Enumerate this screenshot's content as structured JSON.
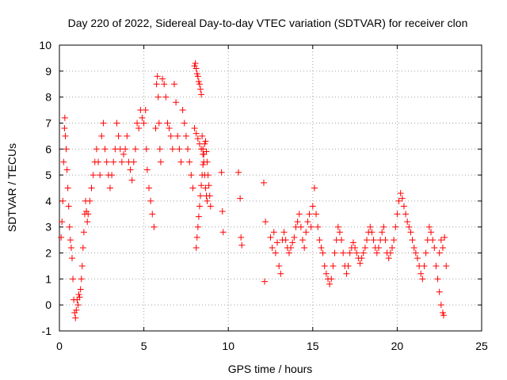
{
  "chart_data": {
    "type": "scatter",
    "title": "Day 220 of 2022, Sidereal Day-to-day VTEC variation (SDTVAR) for receiver clon",
    "xlabel": "GPS time / hours",
    "ylabel": "SDTVAR / TECUs",
    "xlim": [
      0,
      25
    ],
    "ylim": [
      -1,
      10
    ],
    "xticks": [
      0,
      5,
      10,
      15,
      20,
      25
    ],
    "yticks": [
      -1,
      0,
      1,
      2,
      3,
      4,
      5,
      6,
      7,
      8,
      9,
      10
    ],
    "grid": true,
    "marker": "+",
    "series": [
      {
        "name": "SDTVAR",
        "color": "#ff0000",
        "points": [
          [
            0.1,
            2.6
          ],
          [
            0.15,
            3.2
          ],
          [
            0.2,
            4.0
          ],
          [
            0.25,
            5.5
          ],
          [
            0.3,
            6.8
          ],
          [
            0.32,
            7.2
          ],
          [
            0.35,
            6.5
          ],
          [
            0.4,
            6.0
          ],
          [
            0.45,
            5.2
          ],
          [
            0.5,
            4.5
          ],
          [
            0.55,
            3.8
          ],
          [
            0.6,
            3.0
          ],
          [
            0.65,
            2.5
          ],
          [
            0.7,
            2.2
          ],
          [
            0.75,
            1.8
          ],
          [
            0.8,
            1.0
          ],
          [
            0.85,
            0.2
          ],
          [
            0.9,
            -0.3
          ],
          [
            0.95,
            -0.5
          ],
          [
            1.0,
            -0.2
          ],
          [
            1.05,
            0.2
          ],
          [
            1.1,
            0.0
          ],
          [
            1.15,
            0.4
          ],
          [
            1.2,
            0.3
          ],
          [
            1.25,
            0.6
          ],
          [
            1.3,
            1.0
          ],
          [
            1.35,
            1.5
          ],
          [
            1.4,
            2.2
          ],
          [
            1.45,
            2.8
          ],
          [
            1.5,
            3.5
          ],
          [
            1.55,
            4.0
          ],
          [
            1.6,
            3.6
          ],
          [
            1.65,
            3.2
          ],
          [
            1.7,
            3.5
          ],
          [
            1.8,
            4.0
          ],
          [
            1.9,
            4.5
          ],
          [
            2.0,
            5.0
          ],
          [
            2.1,
            5.5
          ],
          [
            2.2,
            6.0
          ],
          [
            2.3,
            5.5
          ],
          [
            2.4,
            5.0
          ],
          [
            2.5,
            6.5
          ],
          [
            2.6,
            7.0
          ],
          [
            2.7,
            6.0
          ],
          [
            2.8,
            5.5
          ],
          [
            2.9,
            5.0
          ],
          [
            3.0,
            4.5
          ],
          [
            3.1,
            5.0
          ],
          [
            3.2,
            5.5
          ],
          [
            3.3,
            6.0
          ],
          [
            3.4,
            7.0
          ],
          [
            3.5,
            6.5
          ],
          [
            3.6,
            6.0
          ],
          [
            3.7,
            5.5
          ],
          [
            3.8,
            5.8
          ],
          [
            3.9,
            6.0
          ],
          [
            4.0,
            6.5
          ],
          [
            4.1,
            5.5
          ],
          [
            4.2,
            5.2
          ],
          [
            4.3,
            4.8
          ],
          [
            4.4,
            5.5
          ],
          [
            4.5,
            6.0
          ],
          [
            4.6,
            7.0
          ],
          [
            4.7,
            6.8
          ],
          [
            4.8,
            7.5
          ],
          [
            4.9,
            7.2
          ],
          [
            5.0,
            7.0
          ],
          [
            5.1,
            7.5
          ],
          [
            5.15,
            6.0
          ],
          [
            5.2,
            5.2
          ],
          [
            5.3,
            4.5
          ],
          [
            5.4,
            4.0
          ],
          [
            5.5,
            3.5
          ],
          [
            5.6,
            3.0
          ],
          [
            5.7,
            6.8
          ],
          [
            5.75,
            8.5
          ],
          [
            5.8,
            8.8
          ],
          [
            5.85,
            8.0
          ],
          [
            5.9,
            7.0
          ],
          [
            5.95,
            6.0
          ],
          [
            6.0,
            5.5
          ],
          [
            6.1,
            8.7
          ],
          [
            6.2,
            8.5
          ],
          [
            6.3,
            8.0
          ],
          [
            6.4,
            7.0
          ],
          [
            6.5,
            6.8
          ],
          [
            6.6,
            6.5
          ],
          [
            6.7,
            6.0
          ],
          [
            6.8,
            8.5
          ],
          [
            6.9,
            7.8
          ],
          [
            7.0,
            6.5
          ],
          [
            7.1,
            6.0
          ],
          [
            7.2,
            5.5
          ],
          [
            7.3,
            7.5
          ],
          [
            7.4,
            7.0
          ],
          [
            7.5,
            6.5
          ],
          [
            7.6,
            6.0
          ],
          [
            7.7,
            5.5
          ],
          [
            7.8,
            5.0
          ],
          [
            7.9,
            4.5
          ],
          [
            8.0,
            9.2
          ],
          [
            8.05,
            9.3
          ],
          [
            8.1,
            9.1
          ],
          [
            8.15,
            8.9
          ],
          [
            8.2,
            8.8
          ],
          [
            8.25,
            8.6
          ],
          [
            8.3,
            8.5
          ],
          [
            8.35,
            8.3
          ],
          [
            8.4,
            8.1
          ],
          [
            8.45,
            6.5
          ],
          [
            8.5,
            6.0
          ],
          [
            8.55,
            5.5
          ],
          [
            8.6,
            5.0
          ],
          [
            8.65,
            4.5
          ],
          [
            8.7,
            4.2
          ],
          [
            8.75,
            4.0
          ],
          [
            8.1,
            2.2
          ],
          [
            8.15,
            2.6
          ],
          [
            8.2,
            3.0
          ],
          [
            8.25,
            3.4
          ],
          [
            8.3,
            3.8
          ],
          [
            8.35,
            4.2
          ],
          [
            8.4,
            4.6
          ],
          [
            8.45,
            5.0
          ],
          [
            8.5,
            5.4
          ],
          [
            8.55,
            5.8
          ],
          [
            8.6,
            6.2
          ],
          [
            8.65,
            6.3
          ],
          [
            8.7,
            5.9
          ],
          [
            8.75,
            5.5
          ],
          [
            8.8,
            5.0
          ],
          [
            8.85,
            4.6
          ],
          [
            8.9,
            4.2
          ],
          [
            8.95,
            3.8
          ],
          [
            8.0,
            6.8
          ],
          [
            8.1,
            6.6
          ],
          [
            8.2,
            6.4
          ],
          [
            8.3,
            6.2
          ],
          [
            8.4,
            6.0
          ],
          [
            8.5,
            5.8
          ],
          [
            9.6,
            5.1
          ],
          [
            9.65,
            3.6
          ],
          [
            9.7,
            2.8
          ],
          [
            10.6,
            5.1
          ],
          [
            10.7,
            4.1
          ],
          [
            10.75,
            2.6
          ],
          [
            10.8,
            2.3
          ],
          [
            12.1,
            4.7
          ],
          [
            12.15,
            0.9
          ],
          [
            12.2,
            3.2
          ],
          [
            12.5,
            2.6
          ],
          [
            12.6,
            2.2
          ],
          [
            12.7,
            2.8
          ],
          [
            12.8,
            2.0
          ],
          [
            12.9,
            2.4
          ],
          [
            13.0,
            1.5
          ],
          [
            13.1,
            1.2
          ],
          [
            13.2,
            2.5
          ],
          [
            13.3,
            2.8
          ],
          [
            13.4,
            2.5
          ],
          [
            13.5,
            2.2
          ],
          [
            13.6,
            2.0
          ],
          [
            13.7,
            2.2
          ],
          [
            13.8,
            2.4
          ],
          [
            13.9,
            2.6
          ],
          [
            14.0,
            3.0
          ],
          [
            14.1,
            3.2
          ],
          [
            14.2,
            3.5
          ],
          [
            14.3,
            3.0
          ],
          [
            14.4,
            2.5
          ],
          [
            14.5,
            2.2
          ],
          [
            14.6,
            2.8
          ],
          [
            14.7,
            3.2
          ],
          [
            14.8,
            3.5
          ],
          [
            14.9,
            3.0
          ],
          [
            15.0,
            3.8
          ],
          [
            15.1,
            4.5
          ],
          [
            15.2,
            3.5
          ],
          [
            15.3,
            3.0
          ],
          [
            15.4,
            2.5
          ],
          [
            15.5,
            2.2
          ],
          [
            15.6,
            2.0
          ],
          [
            15.7,
            1.5
          ],
          [
            15.8,
            1.2
          ],
          [
            15.9,
            1.0
          ],
          [
            16.0,
            0.8
          ],
          [
            16.1,
            1.0
          ],
          [
            16.2,
            1.5
          ],
          [
            16.3,
            2.0
          ],
          [
            16.4,
            2.5
          ],
          [
            16.5,
            3.0
          ],
          [
            16.6,
            2.8
          ],
          [
            16.7,
            2.5
          ],
          [
            16.8,
            2.0
          ],
          [
            16.9,
            1.5
          ],
          [
            17.0,
            1.2
          ],
          [
            17.1,
            1.5
          ],
          [
            17.2,
            2.0
          ],
          [
            17.3,
            2.2
          ],
          [
            17.4,
            2.4
          ],
          [
            17.5,
            2.2
          ],
          [
            17.6,
            2.0
          ],
          [
            17.7,
            1.8
          ],
          [
            17.8,
            1.6
          ],
          [
            17.9,
            1.8
          ],
          [
            18.0,
            2.0
          ],
          [
            18.1,
            2.2
          ],
          [
            18.2,
            2.5
          ],
          [
            18.3,
            2.8
          ],
          [
            18.4,
            3.0
          ],
          [
            18.5,
            2.8
          ],
          [
            18.6,
            2.5
          ],
          [
            18.7,
            2.2
          ],
          [
            18.8,
            2.0
          ],
          [
            18.9,
            2.2
          ],
          [
            19.0,
            2.5
          ],
          [
            19.1,
            2.8
          ],
          [
            19.2,
            3.0
          ],
          [
            19.3,
            2.5
          ],
          [
            19.4,
            2.0
          ],
          [
            19.5,
            1.8
          ],
          [
            19.6,
            2.0
          ],
          [
            19.7,
            2.2
          ],
          [
            19.8,
            2.5
          ],
          [
            19.9,
            3.0
          ],
          [
            20.0,
            3.5
          ],
          [
            20.1,
            4.0
          ],
          [
            20.2,
            4.3
          ],
          [
            20.3,
            4.1
          ],
          [
            20.4,
            3.8
          ],
          [
            20.5,
            3.5
          ],
          [
            20.6,
            3.2
          ],
          [
            20.7,
            3.0
          ],
          [
            20.8,
            2.8
          ],
          [
            20.9,
            2.5
          ],
          [
            21.0,
            2.2
          ],
          [
            21.1,
            2.0
          ],
          [
            21.2,
            1.8
          ],
          [
            21.3,
            1.5
          ],
          [
            21.4,
            1.2
          ],
          [
            21.5,
            1.0
          ],
          [
            21.6,
            1.5
          ],
          [
            21.7,
            2.0
          ],
          [
            21.8,
            2.5
          ],
          [
            21.9,
            3.0
          ],
          [
            22.0,
            2.8
          ],
          [
            22.1,
            2.5
          ],
          [
            22.2,
            2.2
          ],
          [
            22.3,
            1.5
          ],
          [
            22.4,
            1.0
          ],
          [
            22.5,
            0.5
          ],
          [
            22.6,
            0.0
          ],
          [
            22.7,
            -0.3
          ],
          [
            22.75,
            -0.4
          ],
          [
            22.5,
            2.0
          ],
          [
            22.6,
            2.5
          ],
          [
            22.7,
            2.2
          ],
          [
            22.8,
            2.6
          ],
          [
            22.9,
            1.5
          ]
        ]
      }
    ]
  }
}
